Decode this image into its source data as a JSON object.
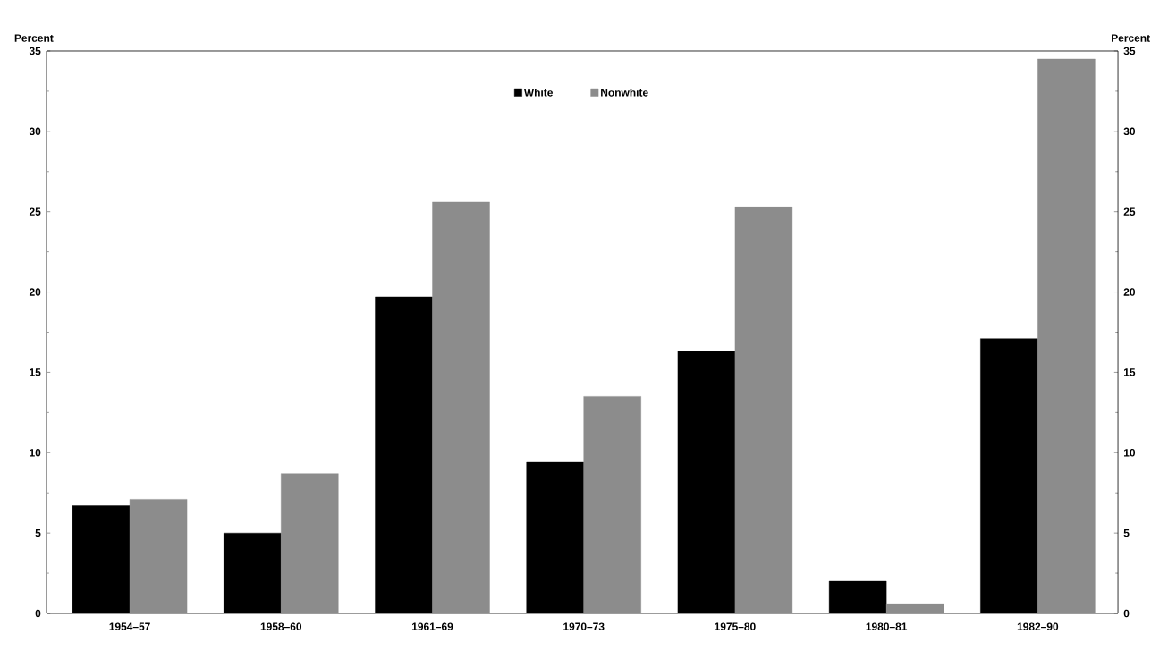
{
  "chart_data": {
    "type": "bar",
    "ylabel": "Percent",
    "y2label": "Percent",
    "categories": [
      "1954–57",
      "1958–60",
      "1961–69",
      "1970–73",
      "1975–80",
      "1980–81",
      "1982–90"
    ],
    "series": [
      {
        "name": "White",
        "color": "#000000",
        "values": [
          6.7,
          5.0,
          19.7,
          9.4,
          16.3,
          2.0,
          17.1
        ]
      },
      {
        "name": "Nonwhite",
        "color": "#8c8c8c",
        "values": [
          7.1,
          8.7,
          25.6,
          13.5,
          25.3,
          0.6,
          34.5
        ]
      }
    ],
    "ylim": [
      0,
      35
    ],
    "yticks": [
      0,
      5,
      10,
      15,
      20,
      25,
      30,
      35
    ],
    "y2lim": [
      0,
      35
    ],
    "y2ticks": [
      0,
      5,
      10,
      15,
      20,
      25,
      30,
      35
    ],
    "legend": "top",
    "grid": false
  }
}
